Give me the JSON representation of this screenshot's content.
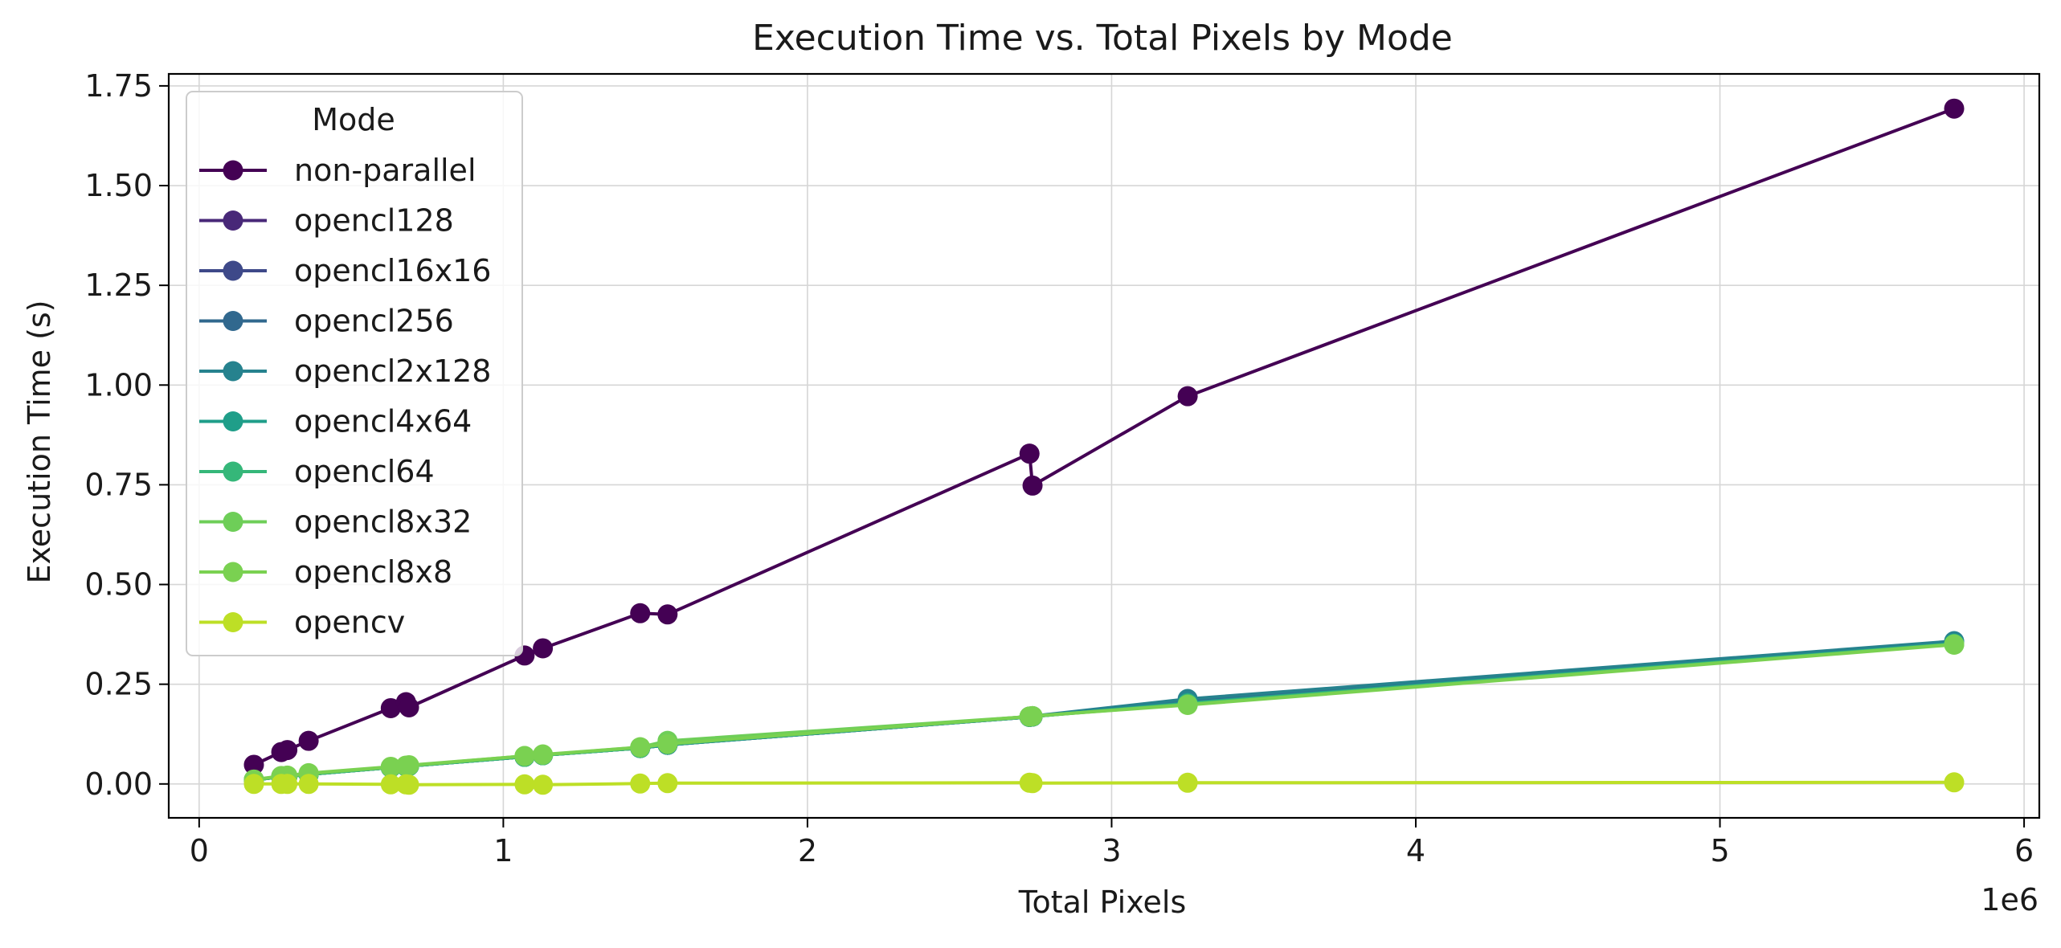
{
  "chart_data": {
    "type": "line",
    "title": "Execution Time vs. Total Pixels by Mode",
    "xlabel": "Total Pixels",
    "ylabel": "Execution Time (s)",
    "x_offset_label": "1e6",
    "xlim": [
      -0.1,
      6.05
    ],
    "ylim": [
      -0.085,
      1.78
    ],
    "xticks": [
      0,
      1,
      2,
      3,
      4,
      5,
      6
    ],
    "xtick_labels": [
      "0",
      "1",
      "2",
      "3",
      "4",
      "5",
      "6"
    ],
    "yticks": [
      0,
      0.25,
      0.5,
      0.75,
      1.0,
      1.25,
      1.5,
      1.75
    ],
    "ytick_labels": [
      "0.00",
      "0.25",
      "0.50",
      "0.75",
      "1.00",
      "1.25",
      "1.50",
      "1.75"
    ],
    "grid": true,
    "legend": {
      "title": "Mode",
      "position": "upper-left"
    },
    "x": [
      0.18,
      0.27,
      0.29,
      0.36,
      0.63,
      0.68,
      0.69,
      1.07,
      1.13,
      1.45,
      1.54,
      2.73,
      2.74,
      3.25,
      5.77
    ],
    "series": [
      {
        "name": "non-parallel",
        "color": "#440154",
        "values": [
          0.048,
          0.08,
          0.085,
          0.108,
          0.19,
          0.205,
          0.192,
          0.322,
          0.34,
          0.428,
          0.425,
          0.828,
          0.748,
          0.972,
          1.693
        ]
      },
      {
        "name": "opencl128",
        "color": "#482878",
        "values": [
          0.01,
          0.018,
          0.019,
          0.024,
          0.041,
          0.044,
          0.045,
          0.068,
          0.072,
          0.09,
          0.098,
          0.168,
          0.169,
          0.203,
          0.353
        ]
      },
      {
        "name": "opencl16x16",
        "color": "#3e4989",
        "values": [
          0.01,
          0.018,
          0.019,
          0.024,
          0.041,
          0.044,
          0.045,
          0.068,
          0.072,
          0.09,
          0.098,
          0.168,
          0.169,
          0.205,
          0.354
        ]
      },
      {
        "name": "opencl256",
        "color": "#31688e",
        "values": [
          0.01,
          0.018,
          0.019,
          0.024,
          0.041,
          0.044,
          0.045,
          0.068,
          0.072,
          0.09,
          0.098,
          0.168,
          0.169,
          0.207,
          0.356
        ]
      },
      {
        "name": "opencl2x128",
        "color": "#26828e",
        "values": [
          0.01,
          0.019,
          0.02,
          0.025,
          0.042,
          0.045,
          0.046,
          0.069,
          0.073,
          0.091,
          0.1,
          0.169,
          0.17,
          0.213,
          0.358
        ]
      },
      {
        "name": "opencl4x64",
        "color": "#1f9e89",
        "values": [
          0.01,
          0.018,
          0.019,
          0.024,
          0.041,
          0.044,
          0.045,
          0.068,
          0.072,
          0.09,
          0.098,
          0.168,
          0.169,
          0.203,
          0.352
        ]
      },
      {
        "name": "opencl64",
        "color": "#35b779",
        "values": [
          0.01,
          0.018,
          0.019,
          0.024,
          0.041,
          0.044,
          0.045,
          0.068,
          0.072,
          0.09,
          0.102,
          0.168,
          0.169,
          0.201,
          0.351
        ]
      },
      {
        "name": "opencl8x32",
        "color": "#6ece58",
        "values": [
          0.011,
          0.019,
          0.02,
          0.026,
          0.042,
          0.045,
          0.046,
          0.07,
          0.073,
          0.092,
          0.108,
          0.169,
          0.17,
          0.199,
          0.35
        ]
      },
      {
        "name": "opencl8x8",
        "color": "#7ad151",
        "values": [
          0.011,
          0.02,
          0.021,
          0.027,
          0.043,
          0.046,
          0.047,
          0.07,
          0.074,
          0.092,
          0.1,
          0.169,
          0.17,
          0.198,
          0.349
        ]
      },
      {
        "name": "opencv",
        "color": "#bddf26",
        "values": [
          0.0,
          0.0,
          0.0,
          0.0,
          -0.001,
          -0.001,
          -0.002,
          -0.001,
          -0.002,
          0.001,
          0.002,
          0.003,
          0.002,
          0.003,
          0.004
        ]
      }
    ]
  }
}
